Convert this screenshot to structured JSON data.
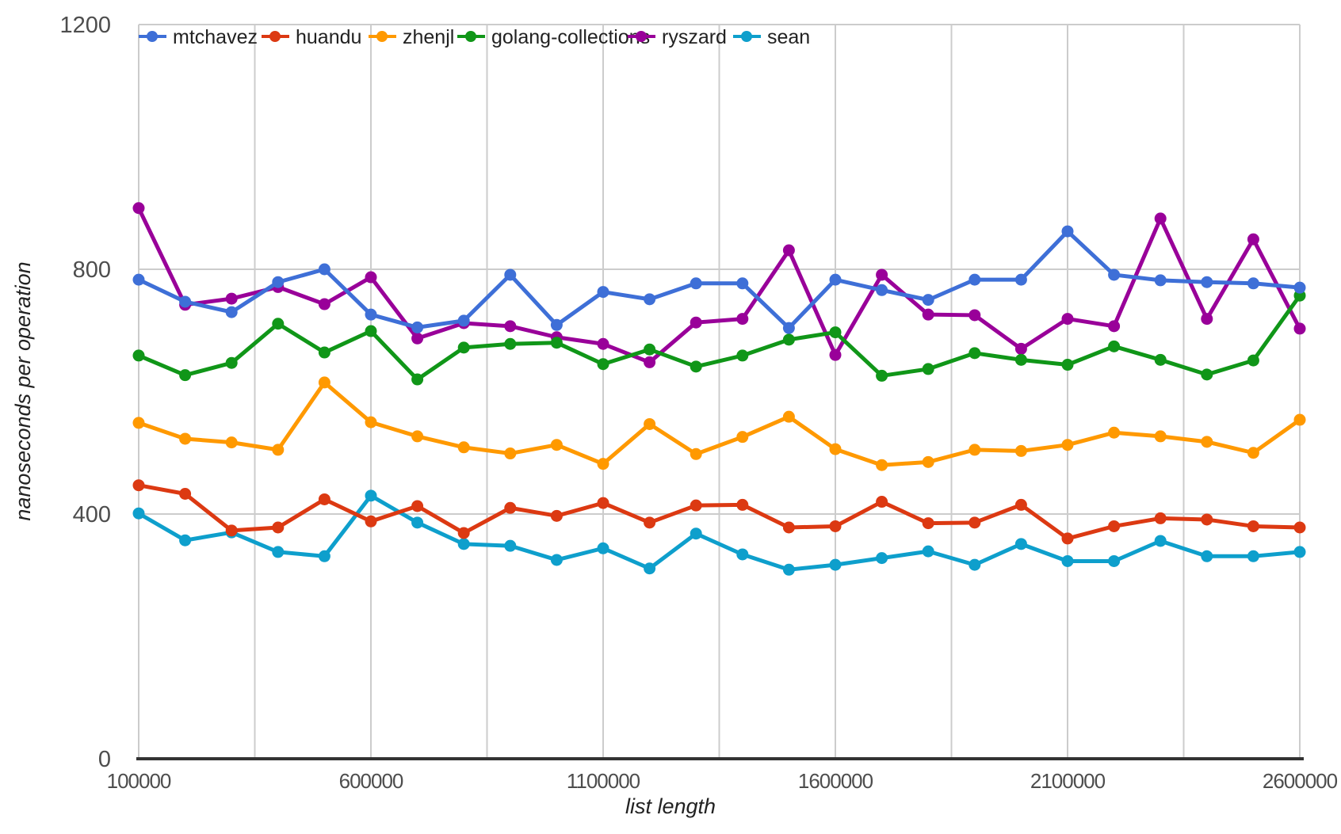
{
  "chart_data": {
    "type": "line",
    "title": "",
    "xlabel": "list length",
    "ylabel": "nanoseconds per operation",
    "xlim": [
      100000,
      2600000
    ],
    "ylim": [
      0,
      1200
    ],
    "x_ticks": [
      100000,
      600000,
      1100000,
      1600000,
      2100000,
      2600000
    ],
    "x_tick_labels": [
      "100000",
      "600000",
      "1100000",
      "1600000",
      "2100000",
      "2600000"
    ],
    "y_ticks": [
      0,
      400,
      800,
      1200
    ],
    "y_tick_labels": [
      "0",
      "400",
      "800",
      "1200"
    ],
    "x_grid_step": 250000,
    "grid": "on",
    "legend_position": "top",
    "point_style": "filled-circle",
    "x": [
      100000,
      200000,
      300000,
      400000,
      500000,
      600000,
      700000,
      800000,
      900000,
      1000000,
      1100000,
      1200000,
      1300000,
      1400000,
      1500000,
      1600000,
      1700000,
      1800000,
      1900000,
      2000000,
      2100000,
      2200000,
      2300000,
      2400000,
      2500000,
      2600000
    ],
    "series": [
      {
        "name": "mtchavez",
        "color": "#3E6FD7",
        "values": [
          783,
          747,
          730,
          779,
          800,
          726,
          705,
          716,
          791,
          709,
          763,
          751,
          777,
          777,
          704,
          783,
          766,
          750,
          783,
          783,
          862,
          791,
          782,
          779,
          777,
          770
        ]
      },
      {
        "name": "huandu",
        "color": "#DC3912",
        "values": [
          447,
          433,
          373,
          378,
          424,
          388,
          413,
          369,
          410,
          397,
          418,
          386,
          414,
          415,
          378,
          380,
          420,
          385,
          386,
          415,
          360,
          380,
          393,
          391,
          380,
          378
        ]
      },
      {
        "name": "zhenjl",
        "color": "#FF9900",
        "values": [
          549,
          523,
          517,
          505,
          615,
          550,
          527,
          509,
          499,
          513,
          482,
          547,
          498,
          526,
          559,
          506,
          480,
          485,
          505,
          503,
          513,
          533,
          527,
          518,
          500,
          554
        ]
      },
      {
        "name": "golang-collections",
        "color": "#109618",
        "values": [
          659,
          627,
          647,
          711,
          664,
          699,
          620,
          672,
          678,
          680,
          645,
          669,
          641,
          659,
          685,
          697,
          626,
          637,
          663,
          652,
          644,
          674,
          652,
          628,
          651,
          757
        ]
      },
      {
        "name": "ryszard",
        "color": "#990099",
        "values": [
          900,
          742,
          752,
          771,
          743,
          787,
          687,
          712,
          707,
          689,
          678,
          648,
          713,
          719,
          831,
          660,
          791,
          726,
          725,
          670,
          719,
          707,
          883,
          719,
          849,
          703
        ]
      },
      {
        "name": "sean",
        "color": "#0E9FCC",
        "values": [
          401,
          357,
          370,
          338,
          331,
          430,
          386,
          351,
          348,
          325,
          344,
          311,
          368,
          334,
          309,
          317,
          328,
          339,
          317,
          351,
          323,
          323,
          356,
          331,
          331,
          338
        ]
      }
    ],
    "style": {
      "grid_color": "#cccccc",
      "axis_line_color": "#333333",
      "tick_label_color": "#4d4d4d",
      "background": "#ffffff"
    }
  }
}
